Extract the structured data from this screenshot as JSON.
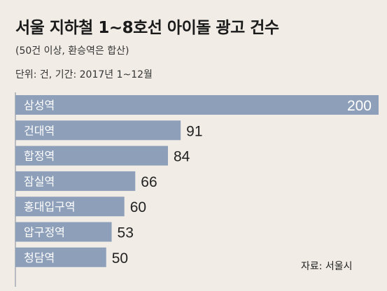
{
  "header": {
    "title": "서울 지하철 1~8호선 아이돌 광고 건수",
    "subtitle": "(50건 이상, 환승역은 합산)",
    "unit_note": "단위: 건, 기간: 2017년 1~12월"
  },
  "source": "자료: 서울시",
  "colors": {
    "bar": "#8e9fba",
    "background": "#f1ede6",
    "bar_label": "#ffffff",
    "value_label": "#222222",
    "axis": "#7f8a99"
  },
  "chart_data": {
    "type": "bar",
    "orientation": "horizontal",
    "title": "서울 지하철 1~8호선 아이돌 광고 건수",
    "subtitle": "(50건 이상, 환승역은 합산)",
    "categories": [
      "삼성역",
      "건대역",
      "합정역",
      "잠실역",
      "홍대입구역",
      "압구정역",
      "청담역"
    ],
    "values": [
      200,
      91,
      84,
      66,
      60,
      53,
      50
    ],
    "xlim": [
      0,
      200
    ],
    "grid": false,
    "legend": "none"
  }
}
